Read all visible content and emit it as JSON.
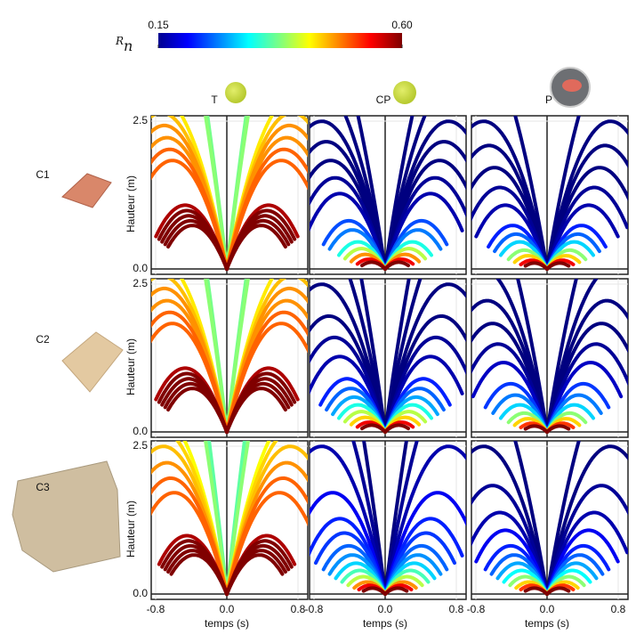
{
  "chart_data": {
    "type": "trajectory",
    "colorbar": {
      "symbol": "R",
      "subscript": "n",
      "lim": [
        0.15,
        0.6
      ],
      "ticks": [
        0.15,
        {
          "value": 0.6,
          "label": "0.60"
        }
      ]
    },
    "columns": [
      "T",
      "CP",
      "P"
    ],
    "rows": [
      "C1",
      "C2",
      "C3"
    ],
    "ylabel": "Hauteur (m)",
    "xlabel": "temps (s)",
    "xlim": [
      -0.85,
      0.91
    ],
    "ylim": [
      -0.09,
      2.59
    ],
    "xticks": [
      -0.8,
      {
        "value": 0,
        "label": "0.0"
      },
      0.8
    ],
    "yticks": [
      {
        "value": 0,
        "label": "0.0"
      },
      2.5
    ],
    "panels": [
      {
        "v": [
          3.8,
          4.0,
          4.2,
          4.4,
          4.6,
          6.0,
          6.3,
          6.6,
          6.9,
          7.2,
          7.6,
          12,
          13
        ],
        "rn": [
          0.6,
          0.6,
          0.6,
          0.6,
          0.58,
          0.5,
          0.5,
          0.48,
          0.48,
          0.46,
          0.44,
          0.38,
          0.37
        ]
      },
      {
        "v": [
          1.5,
          1.8,
          2.2,
          2.6,
          3.0,
          3.6,
          4.0,
          5.0,
          5.5,
          6.0,
          6.5,
          7.0,
          8.0,
          10
        ],
        "rn": [
          0.6,
          0.55,
          0.48,
          0.4,
          0.33,
          0.26,
          0.24,
          0.17,
          0.16,
          0.15,
          0.15,
          0.15,
          0.15,
          0.15
        ]
      },
      {
        "v": [
          1.4,
          1.7,
          2.1,
          2.5,
          3.0,
          3.4,
          3.8,
          4.6,
          5.2,
          5.8,
          6.4,
          7.0,
          9.0
        ],
        "rn": [
          0.6,
          0.55,
          0.45,
          0.38,
          0.3,
          0.25,
          0.22,
          0.17,
          0.16,
          0.15,
          0.15,
          0.15,
          0.15
        ]
      },
      {
        "v": [
          3.8,
          4.0,
          4.2,
          4.4,
          4.6,
          6.0,
          6.3,
          6.6,
          6.9,
          7.2,
          7.6,
          12,
          13
        ],
        "rn": [
          0.6,
          0.6,
          0.6,
          0.6,
          0.58,
          0.5,
          0.5,
          0.48,
          0.48,
          0.46,
          0.44,
          0.38,
          0.37
        ]
      },
      {
        "v": [
          1.5,
          1.8,
          2.2,
          2.6,
          3.0,
          3.4,
          3.8,
          4.2,
          5.0,
          5.6,
          6.2,
          7.0,
          8.5,
          11
        ],
        "rn": [
          0.6,
          0.55,
          0.45,
          0.4,
          0.33,
          0.28,
          0.25,
          0.22,
          0.17,
          0.16,
          0.15,
          0.15,
          0.15,
          0.15
        ]
      },
      {
        "v": [
          1.4,
          1.7,
          2.1,
          2.5,
          3.0,
          3.5,
          4.0,
          4.8,
          5.4,
          6.0,
          6.6,
          7.4,
          9.5
        ],
        "rn": [
          0.6,
          0.52,
          0.45,
          0.38,
          0.3,
          0.26,
          0.23,
          0.18,
          0.16,
          0.15,
          0.15,
          0.15,
          0.15
        ]
      },
      {
        "v": [
          3.6,
          3.8,
          4.0,
          4.2,
          4.4,
          5.8,
          6.2,
          6.6,
          7.0,
          7.4,
          7.8,
          12,
          14
        ],
        "rn": [
          0.6,
          0.6,
          0.6,
          0.6,
          0.58,
          0.5,
          0.5,
          0.48,
          0.46,
          0.45,
          0.43,
          0.38,
          0.36
        ]
      },
      {
        "v": [
          1.4,
          1.7,
          2.0,
          2.4,
          2.8,
          3.2,
          3.6,
          4.0,
          4.5,
          5.0,
          5.8,
          7.0,
          9.0,
          12
        ],
        "rn": [
          0.6,
          0.55,
          0.48,
          0.4,
          0.35,
          0.3,
          0.27,
          0.25,
          0.23,
          0.22,
          0.2,
          0.17,
          0.16,
          0.15
        ]
      },
      {
        "v": [
          1.4,
          1.7,
          2.0,
          2.4,
          2.8,
          3.2,
          3.6,
          4.0,
          4.6,
          5.2,
          6.0,
          7.0,
          9.0
        ],
        "rn": [
          0.6,
          0.52,
          0.45,
          0.38,
          0.32,
          0.28,
          0.25,
          0.22,
          0.2,
          0.17,
          0.16,
          0.15,
          0.15
        ]
      }
    ]
  }
}
